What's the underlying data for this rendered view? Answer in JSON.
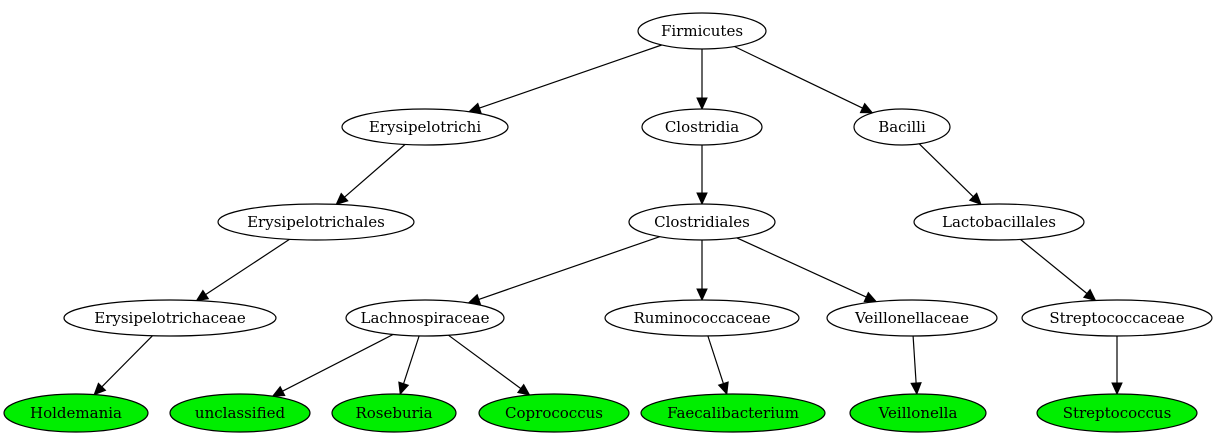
{
  "colors": {
    "internal_fill": "#ffffff",
    "leaf_fill": "#00ee00",
    "stroke": "#000000"
  },
  "nodes": [
    {
      "id": "firmicutes",
      "label": "Firmicutes",
      "kind": "internal"
    },
    {
      "id": "erysipelotrichi",
      "label": "Erysipelotrichi",
      "kind": "internal"
    },
    {
      "id": "clostridia",
      "label": "Clostridia",
      "kind": "internal"
    },
    {
      "id": "bacilli",
      "label": "Bacilli",
      "kind": "internal"
    },
    {
      "id": "erysipelotrichales",
      "label": "Erysipelotrichales",
      "kind": "internal"
    },
    {
      "id": "clostridiales",
      "label": "Clostridiales",
      "kind": "internal"
    },
    {
      "id": "lactobacillales",
      "label": "Lactobacillales",
      "kind": "internal"
    },
    {
      "id": "erysipelotrichaceae",
      "label": "Erysipelotrichaceae",
      "kind": "internal"
    },
    {
      "id": "lachnospiraceae",
      "label": "Lachnospiraceae",
      "kind": "internal"
    },
    {
      "id": "ruminococcaceae",
      "label": "Ruminococcaceae",
      "kind": "internal"
    },
    {
      "id": "veillonellaceae",
      "label": "Veillonellaceae",
      "kind": "internal"
    },
    {
      "id": "streptococcaceae",
      "label": "Streptococcaceae",
      "kind": "internal"
    },
    {
      "id": "holdemania",
      "label": "Holdemania",
      "kind": "leaf"
    },
    {
      "id": "unclassified",
      "label": "unclassified",
      "kind": "leaf"
    },
    {
      "id": "roseburia",
      "label": "Roseburia",
      "kind": "leaf"
    },
    {
      "id": "coprococcus",
      "label": "Coprococcus",
      "kind": "leaf"
    },
    {
      "id": "faecalibacterium",
      "label": "Faecalibacterium",
      "kind": "leaf"
    },
    {
      "id": "veillonella",
      "label": "Veillonella",
      "kind": "leaf"
    },
    {
      "id": "streptococcus",
      "label": "Streptococcus",
      "kind": "leaf"
    }
  ],
  "edges": [
    {
      "from": "firmicutes",
      "to": "erysipelotrichi"
    },
    {
      "from": "firmicutes",
      "to": "clostridia"
    },
    {
      "from": "firmicutes",
      "to": "bacilli"
    },
    {
      "from": "erysipelotrichi",
      "to": "erysipelotrichales"
    },
    {
      "from": "clostridia",
      "to": "clostridiales"
    },
    {
      "from": "bacilli",
      "to": "lactobacillales"
    },
    {
      "from": "erysipelotrichales",
      "to": "erysipelotrichaceae"
    },
    {
      "from": "clostridiales",
      "to": "lachnospiraceae"
    },
    {
      "from": "clostridiales",
      "to": "ruminococcaceae"
    },
    {
      "from": "clostridiales",
      "to": "veillonellaceae"
    },
    {
      "from": "lactobacillales",
      "to": "streptococcaceae"
    },
    {
      "from": "erysipelotrichaceae",
      "to": "holdemania"
    },
    {
      "from": "lachnospiraceae",
      "to": "unclassified"
    },
    {
      "from": "lachnospiraceae",
      "to": "roseburia"
    },
    {
      "from": "lachnospiraceae",
      "to": "coprococcus"
    },
    {
      "from": "ruminococcaceae",
      "to": "faecalibacterium"
    },
    {
      "from": "veillonellaceae",
      "to": "veillonella"
    },
    {
      "from": "streptococcaceae",
      "to": "streptococcus"
    }
  ]
}
